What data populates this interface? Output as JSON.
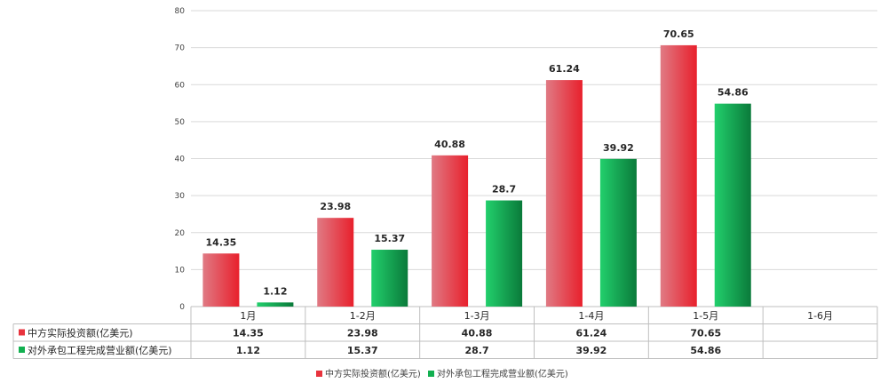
{
  "chart_data": {
    "type": "bar",
    "categories": [
      "1月",
      "1-2月",
      "1-3月",
      "1-4月",
      "1-5月",
      "1-6月"
    ],
    "series": [
      {
        "name": "中方实际投资额(亿美元)",
        "color": "#e8333d",
        "values": [
          14.35,
          23.98,
          40.88,
          61.24,
          70.65,
          null
        ],
        "labels": [
          "14.35",
          "23.98",
          "40.88",
          "61.24",
          "70.65",
          ""
        ]
      },
      {
        "name": "对外承包工程完成营业额(亿美元)",
        "color": "#12b050",
        "values": [
          1.12,
          15.37,
          28.7,
          39.92,
          54.86,
          null
        ],
        "labels": [
          "1.12",
          "15.37",
          "28.7",
          "39.92",
          "54.86",
          ""
        ]
      }
    ],
    "ylim": [
      0,
      80
    ],
    "yticks": [
      "0",
      "10",
      "20",
      "30",
      "40",
      "50",
      "60",
      "70",
      "80"
    ],
    "grid": true,
    "data_table": true,
    "legend": "bottom"
  }
}
